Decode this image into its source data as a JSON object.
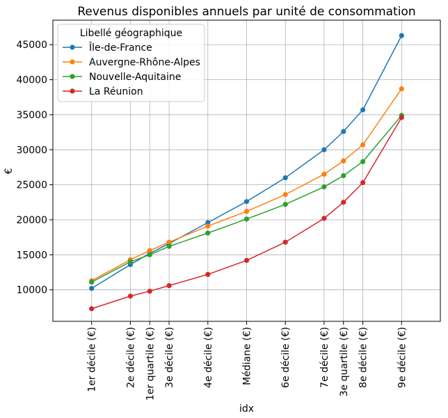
{
  "chart_data": {
    "type": "line",
    "title": "Revenus disponibles annuels par unité de consommation",
    "xlabel": "idx",
    "ylabel": "€",
    "legend_title": "Libellé géographique",
    "legend_position": "top-left",
    "grid": true,
    "ylim": [
      5500,
      48500
    ],
    "yticks": [
      10000,
      15000,
      20000,
      25000,
      30000,
      35000,
      40000,
      45000
    ],
    "x": [
      10,
      20,
      25,
      30,
      40,
      50,
      60,
      70,
      75,
      80,
      90
    ],
    "xlim": [
      0,
      100
    ],
    "categories": [
      "1er décile (€)",
      "2e décile (€)",
      "1er quartile (€)",
      "3e décile (€)",
      "4e décile (€)",
      "Médiane (€)",
      "6e décile (€)",
      "7e décile (€)",
      "3e quartile (€)",
      "8e décile (€)",
      "9e décile (€)"
    ],
    "series": [
      {
        "name": "Île-de-France",
        "color": "#1f77b4",
        "values": [
          10200,
          13600,
          15200,
          16600,
          19600,
          22600,
          26000,
          30000,
          32600,
          35700,
          46300
        ]
      },
      {
        "name": "Auvergne-Rhône-Alpes",
        "color": "#ff7f0e",
        "values": [
          11300,
          14300,
          15600,
          16800,
          19100,
          21200,
          23600,
          26500,
          28400,
          30700,
          38700
        ]
      },
      {
        "name": "Nouvelle-Aquitaine",
        "color": "#2ca02c",
        "values": [
          11100,
          14000,
          15000,
          16200,
          18100,
          20100,
          22200,
          24700,
          26300,
          28300,
          34900
        ]
      },
      {
        "name": "La Réunion",
        "color": "#d62728",
        "values": [
          7300,
          9100,
          9800,
          10600,
          12200,
          14200,
          16800,
          20200,
          22500,
          25300,
          34600
        ]
      }
    ]
  }
}
